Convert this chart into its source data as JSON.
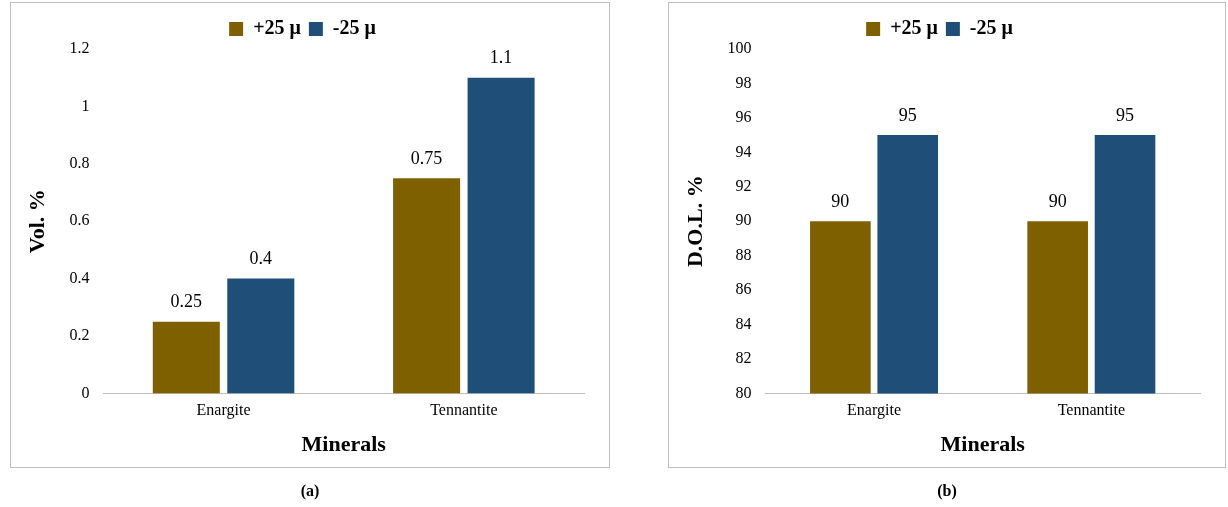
{
  "chart_data": [
    {
      "type": "bar",
      "xlabel": "Minerals",
      "ylabel": "Vol. %",
      "categories": [
        "Enargite",
        "Tennantite"
      ],
      "series": [
        {
          "name": "+25 μ",
          "color": "#7f6000",
          "values": [
            0.25,
            0.75
          ]
        },
        {
          "name": "-25 μ",
          "color": "#1f4e79",
          "values": [
            0.4,
            1.1
          ]
        }
      ],
      "ylim": [
        0,
        1.2
      ],
      "yticks": [
        0,
        0.2,
        0.4,
        0.6,
        0.8,
        1,
        1.2
      ],
      "grid": false,
      "legend": "top",
      "data_labels": true,
      "annotations": [
        "(a)"
      ]
    },
    {
      "type": "bar",
      "xlabel": "Minerals",
      "ylabel": "D.O.L. %",
      "categories": [
        "Enargite",
        "Tennantite"
      ],
      "series": [
        {
          "name": "+25 μ",
          "color": "#7f6000",
          "values": [
            90,
            90
          ]
        },
        {
          "name": "-25 μ",
          "color": "#1f4e79",
          "values": [
            95,
            95
          ]
        }
      ],
      "ylim": [
        80,
        100
      ],
      "yticks": [
        80,
        82,
        84,
        86,
        88,
        90,
        92,
        94,
        96,
        98,
        100
      ],
      "grid": false,
      "legend": "top",
      "data_labels": true,
      "annotations": [
        "(b)"
      ]
    }
  ]
}
